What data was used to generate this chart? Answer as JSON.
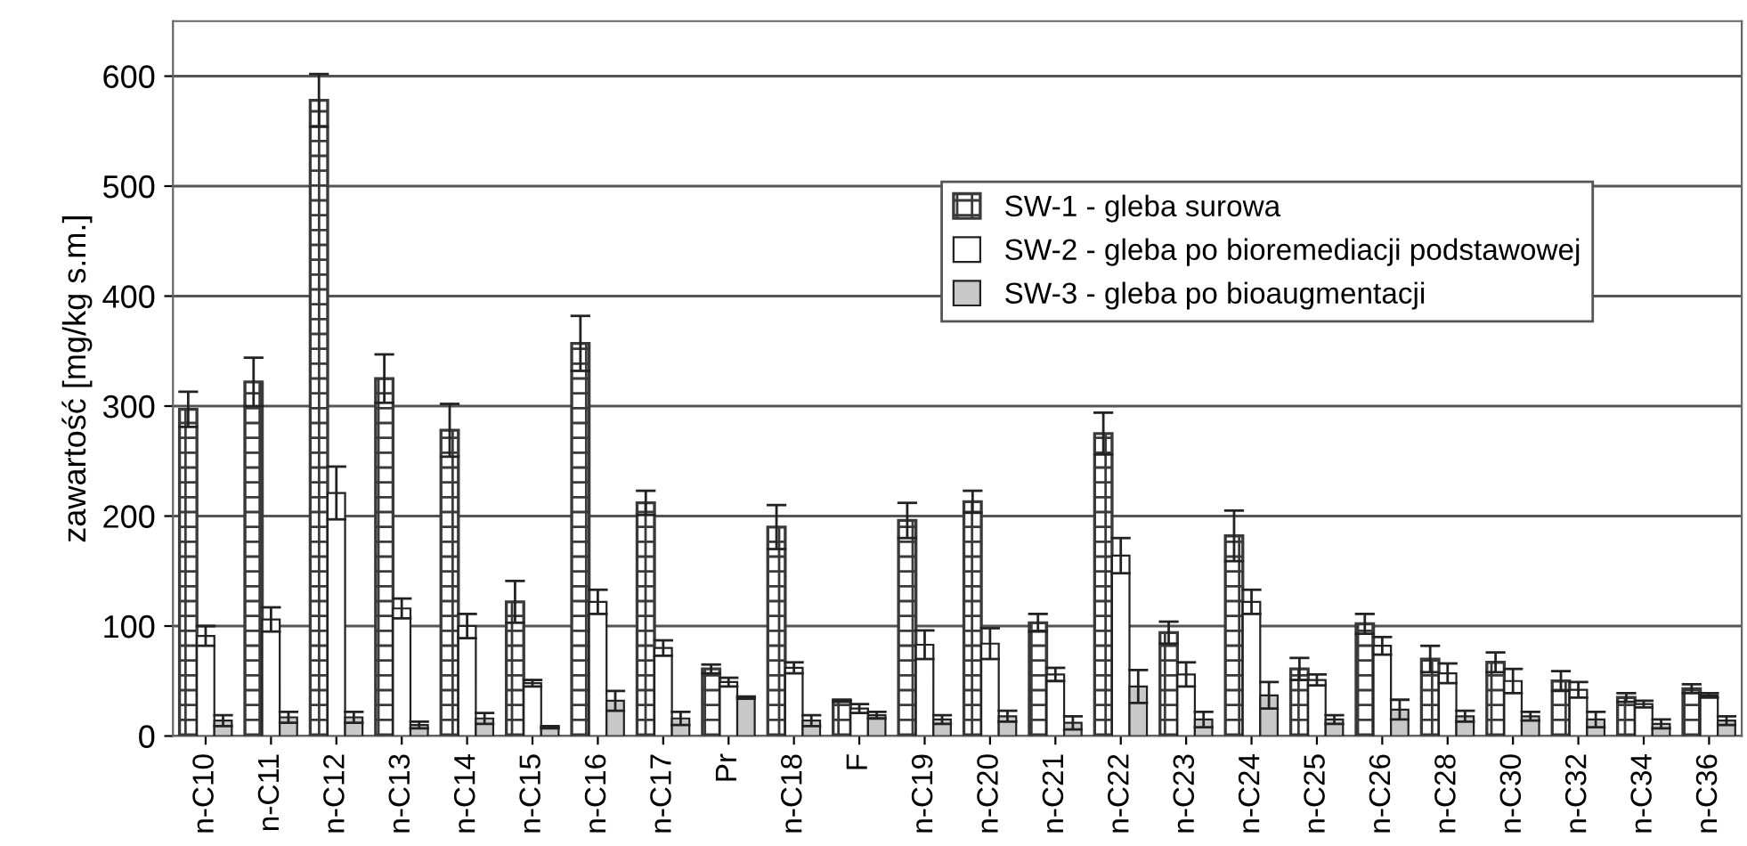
{
  "chart_data": {
    "type": "bar",
    "ylabel": "zawartość [mg/kg s.m.]",
    "categories": [
      "n-C10",
      "n-C11",
      "n-C12",
      "n-C13",
      "n-C14",
      "n-C15",
      "n-C16",
      "n-C17",
      "Pr",
      "n-C18",
      "F",
      "n-C19",
      "n-C20",
      "n-C21",
      "n-C22",
      "n-C23",
      "n-C24",
      "n-C25",
      "n-C26",
      "n-C28",
      "n-C30",
      "n-C32",
      "n-C34",
      "n-C36"
    ],
    "series": [
      {
        "name": "SW-1 - gleba surowa",
        "color": "#3a3a3a",
        "values": [
          297,
          322,
          578,
          325,
          278,
          122,
          357,
          212,
          61,
          190,
          32,
          196,
          213,
          103,
          275,
          94,
          182,
          61,
          102,
          70,
          67,
          50,
          35,
          43
        ],
        "errors": [
          16,
          22,
          24,
          22,
          24,
          19,
          25,
          11,
          4,
          20,
          1,
          16,
          10,
          8,
          19,
          10,
          23,
          10,
          9,
          12,
          9,
          9,
          4,
          4
        ]
      },
      {
        "name": "SW-2 - gleba po bioremediacji podstawowej",
        "color": "#ffffff",
        "values": [
          91,
          106,
          221,
          116,
          100,
          48,
          122,
          80,
          49,
          62,
          25,
          83,
          84,
          56,
          164,
          56,
          122,
          51,
          82,
          57,
          50,
          42,
          29,
          37
        ],
        "errors": [
          9,
          11,
          24,
          9,
          11,
          3,
          11,
          7,
          4,
          5,
          4,
          13,
          14,
          6,
          16,
          11,
          11,
          5,
          8,
          9,
          11,
          7,
          3,
          2
        ]
      },
      {
        "name": "SW-3 - gleba po bioaugmentacji",
        "color": "#c8c8c8",
        "values": [
          14,
          17,
          17,
          10,
          16,
          8,
          32,
          16,
          35,
          14,
          19,
          15,
          18,
          12,
          45,
          15,
          37,
          15,
          24,
          18,
          18,
          15,
          11,
          14
        ],
        "errors": [
          5,
          5,
          5,
          3,
          5,
          1,
          9,
          6,
          1,
          5,
          3,
          4,
          5,
          6,
          15,
          7,
          12,
          4,
          9,
          5,
          4,
          7,
          4,
          4
        ]
      }
    ],
    "ylim": [
      0,
      650
    ],
    "yticks": [
      0,
      100,
      200,
      300,
      400,
      500,
      600
    ],
    "grid": "y",
    "legend": "top right"
  }
}
